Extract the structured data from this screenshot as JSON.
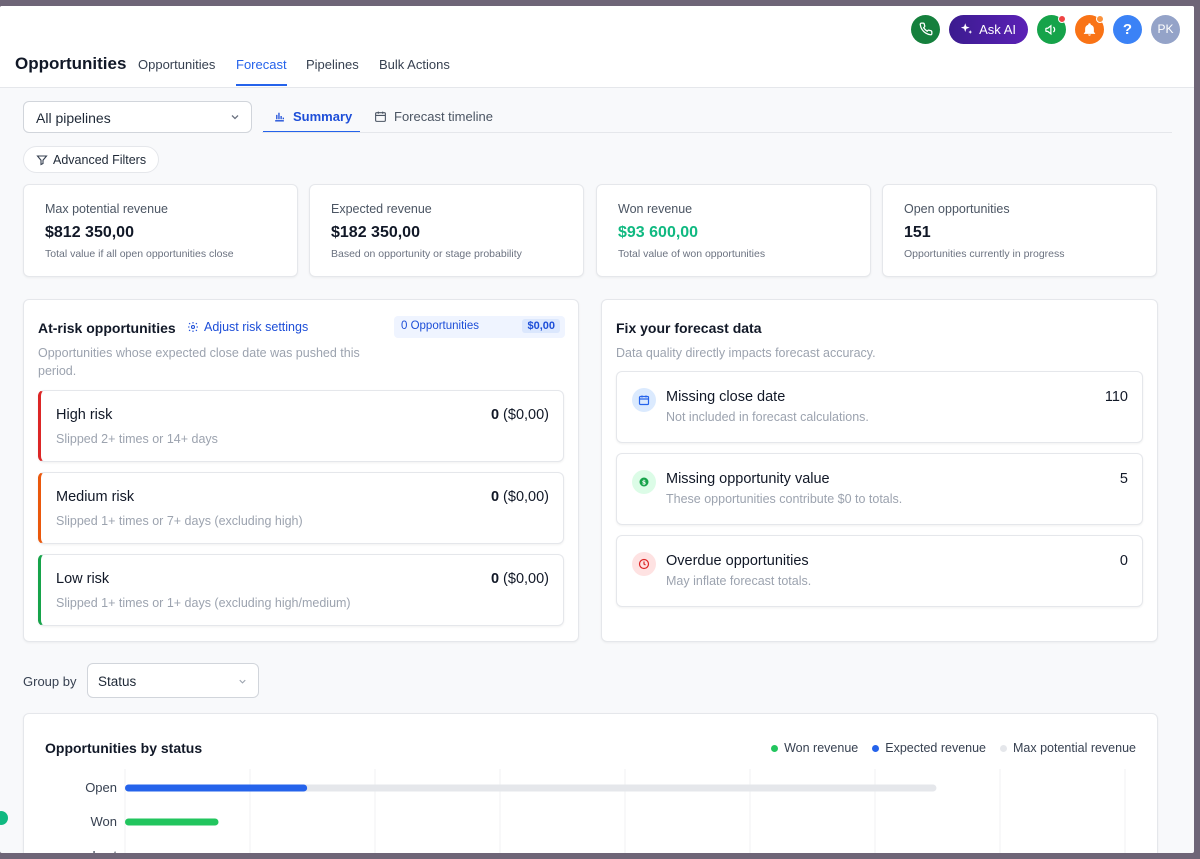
{
  "header": {
    "title": "Opportunities",
    "tabs": [
      {
        "label": "Opportunities",
        "active": false
      },
      {
        "label": "Forecast",
        "active": true
      },
      {
        "label": "Pipelines",
        "active": false
      },
      {
        "label": "Bulk Actions",
        "active": false
      }
    ],
    "ask_ai_label": "Ask AI",
    "help_label": "?",
    "avatar_initials": "PK",
    "colors": {
      "phone": "#15803d",
      "megaphone": "#16a34a",
      "bell": "#f97316",
      "help": "#3b82f6",
      "avatar": "#94a3c8"
    }
  },
  "toolbar": {
    "pipeline_select": "All pipelines",
    "view_tabs": [
      {
        "label": "Summary",
        "icon": "bar-chart-icon",
        "active": true
      },
      {
        "label": "Forecast timeline",
        "icon": "calendar-icon",
        "active": false
      }
    ],
    "filters_label": "Advanced Filters"
  },
  "kpis": [
    {
      "label": "Max potential revenue",
      "value": "$812 350,00",
      "sub": "Total value if all open opportunities close"
    },
    {
      "label": "Expected revenue",
      "value": "$182 350,00",
      "sub": "Based on opportunity or stage probability"
    },
    {
      "label": "Won revenue",
      "value": "$93 600,00",
      "sub": "Total value of won opportunities"
    },
    {
      "label": "Open opportunities",
      "value": "151",
      "sub": "Opportunities currently in progress"
    }
  ],
  "at_risk": {
    "title": "At-risk opportunities",
    "adjust_label": "Adjust risk settings",
    "count_label": "0 Opportunities",
    "amount_label": "$0,00",
    "description": "Opportunities whose expected close date was pushed this period.",
    "items": [
      {
        "name": "High risk",
        "desc": "Slipped 2+ times or 14+ days",
        "count": "0",
        "amount": "($0,00)",
        "color": "#dc2626"
      },
      {
        "name": "Medium risk",
        "desc": "Slipped 1+ times or 7+ days (excluding high)",
        "count": "0",
        "amount": "($0,00)",
        "color": "#ea580c"
      },
      {
        "name": "Low risk",
        "desc": "Slipped 1+ times or 1+ days (excluding high/medium)",
        "count": "0",
        "amount": "($0,00)",
        "color": "#16a34a"
      }
    ]
  },
  "fix_data": {
    "title": "Fix your forecast data",
    "description": "Data quality directly impacts forecast accuracy.",
    "items": [
      {
        "name": "Missing close date",
        "desc": "Not included in forecast calculations.",
        "count": "110",
        "icon": "calendar-icon",
        "color": "#2563eb"
      },
      {
        "name": "Missing opportunity value",
        "desc": "These opportunities contribute $0 to totals.",
        "count": "5",
        "icon": "dollar-icon",
        "color": "#16a34a"
      },
      {
        "name": "Overdue opportunities",
        "desc": "May inflate forecast totals.",
        "count": "0",
        "icon": "clock-icon",
        "color": "#dc2626"
      }
    ]
  },
  "group_by": {
    "label": "Group by",
    "value": "Status"
  },
  "chart_data": {
    "type": "bar",
    "title": "Opportunities by status",
    "orientation": "horizontal",
    "categories": [
      "Open",
      "Won",
      "Lost"
    ],
    "series": [
      {
        "name": "Won revenue",
        "color": "#22c55e",
        "values": [
          0,
          93600,
          0
        ]
      },
      {
        "name": "Expected revenue",
        "color": "#2563eb",
        "values": [
          182350,
          0,
          0
        ]
      },
      {
        "name": "Max potential revenue",
        "color": "#e5e7eb",
        "values": [
          812350,
          0,
          0
        ]
      }
    ],
    "xlim": [
      0,
      900000
    ],
    "grid": true,
    "legend": "top-right"
  }
}
